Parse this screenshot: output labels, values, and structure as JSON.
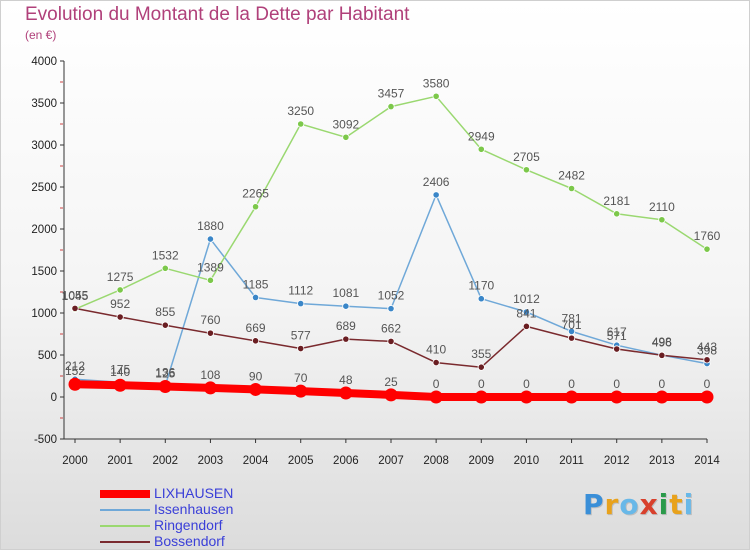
{
  "header": {
    "title": "Evolution du Montant de la Dette par Habitant",
    "subtitle": "(en €)"
  },
  "brand": {
    "logo_text": "Proxiti",
    "letter_colors": [
      "#3a8fd8",
      "#e8a21c",
      "#68b8e8",
      "#d8402c",
      "#2a9a4a",
      "#e8a21c",
      "#68b8e8"
    ]
  },
  "chart_data": {
    "type": "line",
    "title": "Evolution du Montant de la Dette par Habitant",
    "subtitle": "(en €)",
    "xlabel": "",
    "ylabel": "",
    "x": [
      "2000",
      "2001",
      "2002",
      "2003",
      "2004",
      "2005",
      "2006",
      "2007",
      "2008",
      "2009",
      "2010",
      "2011",
      "2012",
      "2013",
      "2014"
    ],
    "ylim": [
      -500,
      4000
    ],
    "yticks": [
      -500,
      0,
      500,
      1000,
      1500,
      2000,
      2500,
      3000,
      3500,
      4000
    ],
    "grid": false,
    "legend_position": "bottom-left",
    "series": [
      {
        "name": "LIXHAUSEN",
        "color": "#ff0000",
        "marker_color": "#ff0000",
        "thick": true,
        "values": [
          152,
          140,
          125,
          108,
          90,
          70,
          48,
          25,
          0,
          0,
          0,
          0,
          0,
          0,
          0
        ],
        "labels": [
          "152",
          "140",
          "125",
          "108",
          "90",
          "70",
          "48",
          "25",
          "0",
          "0",
          "0",
          "0",
          "0",
          "0",
          "0"
        ]
      },
      {
        "name": "Issenhausen",
        "color": "#6fa8d8",
        "marker_color": "#3a86c8",
        "thick": false,
        "values": [
          212,
          175,
          136,
          1880,
          1185,
          1112,
          1081,
          1052,
          2406,
          1170,
          1012,
          781,
          617,
          498,
          398
        ],
        "labels": [
          "212",
          "175",
          "136",
          "1880",
          "1185",
          "1112",
          "1081",
          "1052",
          "2406",
          "1170",
          "1012",
          "781",
          "617",
          "498",
          "398"
        ]
      },
      {
        "name": "Ringendorf",
        "color": "#9ad870",
        "marker_color": "#7cc84a",
        "thick": false,
        "values": [
          1045,
          1275,
          1532,
          1389,
          2265,
          3250,
          3092,
          3457,
          3580,
          2949,
          2705,
          2482,
          2181,
          2110,
          1760
        ],
        "labels": [
          "1045",
          "1275",
          "1532",
          "1389",
          "2265",
          "3250",
          "3092",
          "3457",
          "3580",
          "2949",
          "2705",
          "2482",
          "2181",
          "2110",
          "1760"
        ]
      },
      {
        "name": "Bossendorf",
        "color": "#7a2a2e",
        "marker_color": "#6a1e22",
        "thick": false,
        "values": [
          1055,
          952,
          855,
          760,
          669,
          577,
          689,
          662,
          410,
          355,
          841,
          701,
          571,
          496,
          443
        ],
        "labels": [
          "1055",
          "952",
          "855",
          "760",
          "669",
          "577",
          "689",
          "662",
          "410",
          "355",
          "841",
          "701",
          "571",
          "496",
          "443"
        ]
      }
    ]
  }
}
